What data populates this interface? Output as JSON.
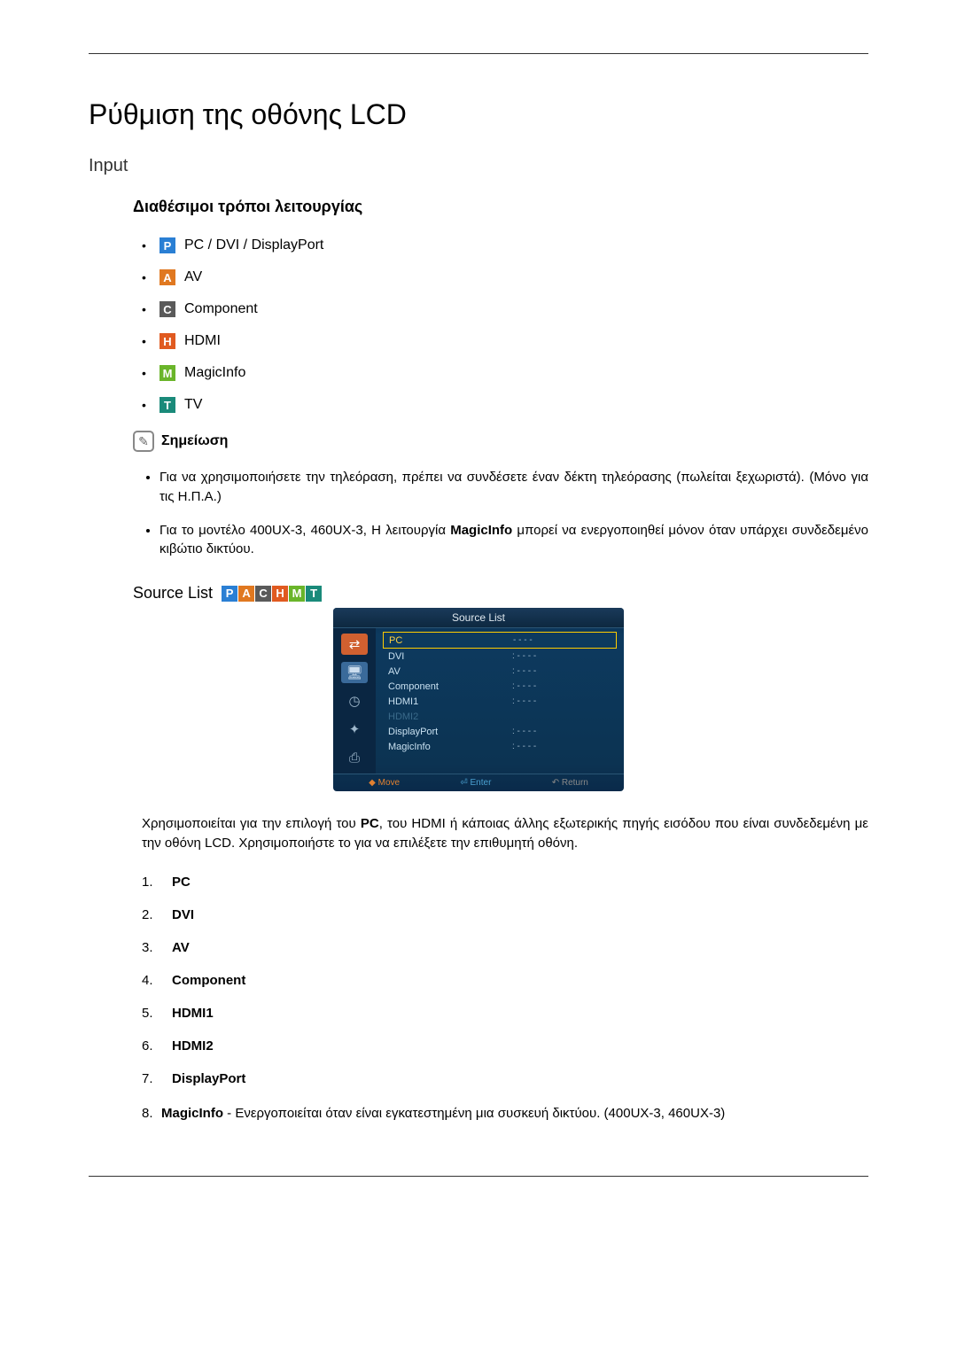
{
  "title": "Ρύθμιση της οθόνης LCD",
  "section_input": "Input",
  "modes_heading": "Διαθέσιμοι τρόποι λειτουργίας",
  "modes": {
    "pc": {
      "badge": "P",
      "color": "#2a7fd4",
      "label": "PC / DVI / DisplayPort"
    },
    "av": {
      "badge": "A",
      "color": "#e07820",
      "label": "AV"
    },
    "comp": {
      "badge": "C",
      "color": "#5a5a5a",
      "label": "Component"
    },
    "hdmi": {
      "badge": "H",
      "color": "#e05a20",
      "label": "HDMI"
    },
    "magic": {
      "badge": "M",
      "color": "#6ab52a",
      "label": "MagicInfo"
    },
    "tv": {
      "badge": "T",
      "color": "#1a8a7a",
      "label": "TV"
    }
  },
  "note_label": "Σημείωση",
  "notes": [
    "Για να χρησιμοποιήσετε την τηλεόραση, πρέπει να συνδέσετε έναν δέκτη τηλεόρασης (πωλείται ξεχωριστά). (Μόνο για τις Η.Π.Α.)",
    "Για το μοντέλο 400UX-3, 460UX-3, Η λειτουργία MagicInfo μπορεί να ενεργοποιηθεί μόνον όταν υπάρχει συνδεδεμένο κιβώτιο δικτύου."
  ],
  "source_list_title": "Source List",
  "badge_strip": [
    {
      "t": "P",
      "c": "#2a7fd4"
    },
    {
      "t": "A",
      "c": "#e07820"
    },
    {
      "t": "C",
      "c": "#5a5a5a"
    },
    {
      "t": "H",
      "c": "#e05a20"
    },
    {
      "t": "M",
      "c": "#6ab52a"
    },
    {
      "t": "T",
      "c": "#1a8a7a"
    }
  ],
  "osd": {
    "header": "Source List",
    "left_icons": [
      {
        "glyph": "⇄",
        "bg": "#d06030",
        "fg": "#ffffff"
      },
      {
        "glyph": "🖥",
        "bg": "#3a6a9a",
        "fg": "#cde"
      },
      {
        "glyph": "◷",
        "bg": "transparent",
        "fg": "#9fb8cc"
      },
      {
        "glyph": "✦",
        "bg": "transparent",
        "fg": "#9fb8cc"
      },
      {
        "glyph": "⎙",
        "bg": "transparent",
        "fg": "#9fb8cc"
      }
    ],
    "items": [
      {
        "name": "PC",
        "val": "- - - -",
        "sel": true,
        "dim": false
      },
      {
        "name": "DVI",
        "val": ": - - - -",
        "sel": false,
        "dim": false
      },
      {
        "name": "AV",
        "val": ": - - - -",
        "sel": false,
        "dim": false
      },
      {
        "name": "Component",
        "val": ": - - - -",
        "sel": false,
        "dim": false
      },
      {
        "name": "HDMI1",
        "val": ": - - - -",
        "sel": false,
        "dim": false
      },
      {
        "name": "HDMI2",
        "val": "",
        "sel": false,
        "dim": true
      },
      {
        "name": "DisplayPort",
        "val": ": - - - -",
        "sel": false,
        "dim": false
      },
      {
        "name": "MagicInfo",
        "val": ": - - - -",
        "sel": false,
        "dim": false
      }
    ],
    "footer": {
      "move": "◆ Move",
      "enter": "⏎ Enter",
      "return": "↶ Return"
    }
  },
  "source_desc_parts": {
    "p1": "Χρησιμοποιείται για την επιλογή του ",
    "pc": "PC",
    "p2": ", του HDMI ή κάποιας άλλης εξωτερικής πηγής εισόδου που είναι συνδεδεμένη με την οθόνη LCD. Χρησιμοποιήστε το για να επιλέξετε την επιθυμητή οθόνη."
  },
  "numbered": [
    {
      "n": "1.",
      "label": "PC"
    },
    {
      "n": "2.",
      "label": "DVI"
    },
    {
      "n": "3.",
      "label": "AV"
    },
    {
      "n": "4.",
      "label": "Component"
    },
    {
      "n": "5.",
      "label": "HDMI1"
    },
    {
      "n": "6.",
      "label": "HDMI2"
    },
    {
      "n": "7.",
      "label": "DisplayPort"
    }
  ],
  "numbered_last": {
    "n": "8.",
    "label": "MagicInfo",
    "rest": " - Ενεργοποιείται όταν είναι εγκατεστημένη μια συσκευή δικτύου. (400UX-3, 460UX-3)"
  }
}
